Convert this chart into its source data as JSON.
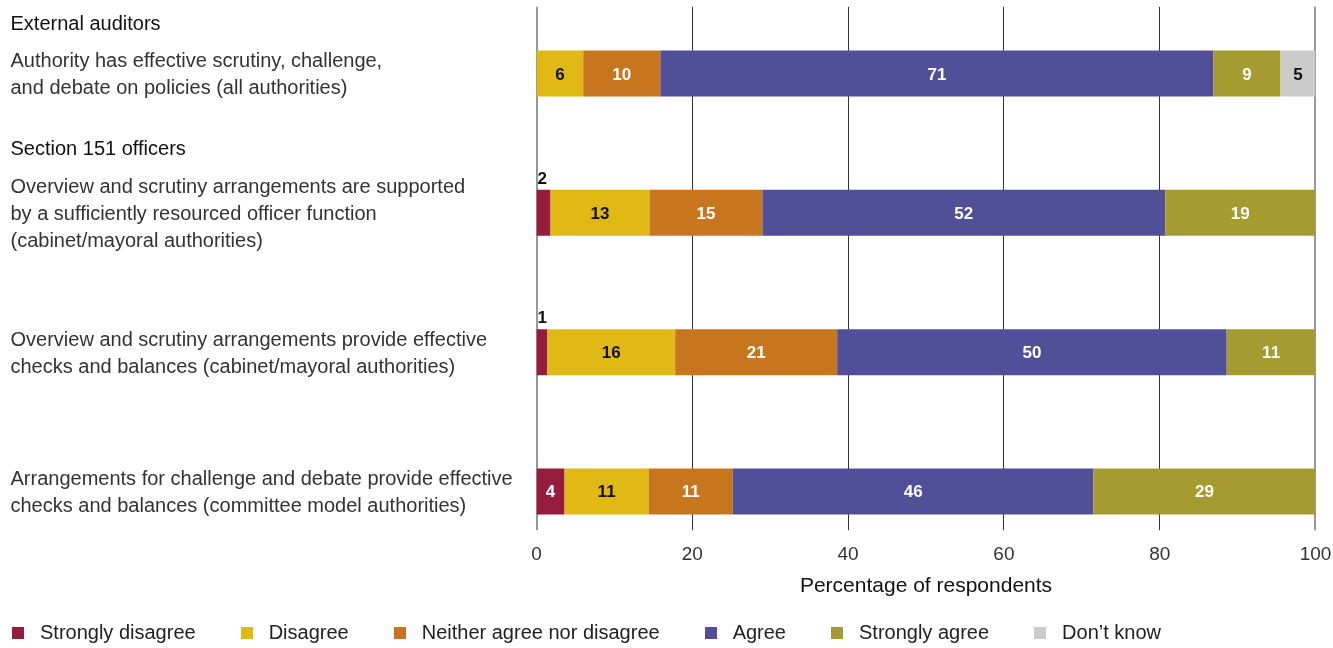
{
  "chart_data": {
    "type": "bar",
    "orientation": "horizontal",
    "stacked": true,
    "categories": [
      "Authority has effective scrutiny, challenge,\nand debate on policies (all authorities)",
      "Overview and scrutiny arrangements are supported\nby a sufficiently resourced officer function\n(cabinet/mayoral authorities)",
      "Overview and scrutiny arrangements provide effective\nchecks and balances (cabinet/mayoral authorities)",
      "Arrangements for challenge and debate provide effective\nchecks and balances (committee model authorities)"
    ],
    "annotations": [
      "External auditors",
      "Section 151 officers"
    ],
    "xlabel": "Percentage of respondents",
    "xlim": [
      0,
      100
    ],
    "xticks": [
      0,
      20,
      40,
      60,
      80,
      100
    ],
    "grid": "x",
    "legend": "bottom",
    "series": [
      {
        "name": "Strongly disagree",
        "color": "#961c3e",
        "values": [
          null,
          1.8,
          1.4,
          3.6
        ],
        "value_labels": [
          null,
          "2",
          "1",
          "4"
        ]
      },
      {
        "name": "Disagree",
        "color": "#e0b914",
        "values": [
          6,
          12.7,
          16.4,
          10.8
        ],
        "value_labels": [
          "6",
          "13",
          "16",
          "11"
        ]
      },
      {
        "name": "Neither agree nor disagree",
        "color": "#c8761e",
        "values": [
          9.9,
          14.5,
          20.8,
          10.8
        ],
        "value_labels": [
          "10",
          "15",
          "21",
          "11"
        ]
      },
      {
        "name": "Agree",
        "color": "#524f99",
        "values": [
          71,
          51.7,
          50,
          46.3
        ],
        "value_labels": [
          "71",
          "52",
          "50",
          "46"
        ]
      },
      {
        "name": "Strongly agree",
        "color": "#a59b30",
        "values": [
          8.6,
          19.3,
          11.4,
          28.5
        ],
        "value_labels": [
          "9",
          "19",
          "11",
          "29"
        ]
      },
      {
        "name": "Don’t know",
        "color": "#cbcbcb",
        "values": [
          4.5,
          null,
          null,
          null
        ],
        "value_labels": [
          "5",
          null,
          null,
          null
        ]
      }
    ]
  }
}
